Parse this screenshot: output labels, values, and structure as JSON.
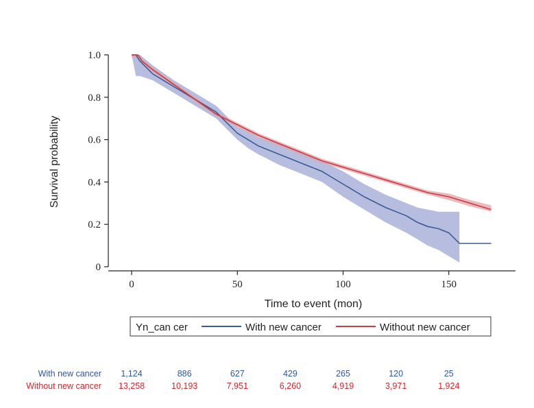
{
  "chart_data": {
    "type": "line",
    "title": "",
    "xlabel": "Time to event (mon)",
    "ylabel": "Survival probability",
    "xlim": [
      -10,
      180
    ],
    "ylim": [
      0,
      1.0
    ],
    "xticks": [
      0,
      50,
      100,
      150
    ],
    "xtick_labels": [
      "0",
      "50",
      "100",
      "150"
    ],
    "yticks": [
      0,
      0.2,
      0.4,
      0.6,
      0.8,
      1.0
    ],
    "ytick_labels": [
      "0",
      "0.2",
      "0.4",
      "0.6",
      "0.8",
      "1.0"
    ],
    "grid": false,
    "legend": {
      "title": "Yn_can cer",
      "placement": "bottom-center",
      "entries": [
        "With new cancer",
        "Without new cancer"
      ]
    },
    "colors": {
      "with_line": "#3b5b96",
      "with_band": "#aab2d8",
      "without_line": "#cc3a44",
      "without_band": "#e3a1a6",
      "risk_with_text": "#2f56a6",
      "risk_without_text": "#d8242b",
      "axis": "#222222"
    },
    "series": [
      {
        "name": "With new cancer",
        "x": [
          0,
          2,
          4,
          10,
          20,
          30,
          40,
          45,
          50,
          55,
          60,
          70,
          80,
          90,
          100,
          110,
          120,
          130,
          135,
          140,
          145,
          150,
          155,
          170
        ],
        "y": [
          1.0,
          1.0,
          0.97,
          0.91,
          0.85,
          0.79,
          0.73,
          0.68,
          0.63,
          0.6,
          0.57,
          0.53,
          0.49,
          0.45,
          0.39,
          0.33,
          0.28,
          0.24,
          0.21,
          0.19,
          0.18,
          0.16,
          0.11,
          0.11
        ],
        "lower": [
          1.0,
          0.9,
          0.9,
          0.88,
          0.82,
          0.76,
          0.7,
          0.65,
          0.6,
          0.56,
          0.53,
          0.48,
          0.44,
          0.4,
          0.33,
          0.27,
          0.21,
          0.16,
          0.13,
          0.1,
          0.08,
          0.05,
          0.02,
          null
        ],
        "upper": [
          1.0,
          1.0,
          1.0,
          0.95,
          0.88,
          0.82,
          0.76,
          0.71,
          0.66,
          0.64,
          0.61,
          0.58,
          0.54,
          0.5,
          0.45,
          0.39,
          0.34,
          0.3,
          0.28,
          0.27,
          0.26,
          0.26,
          0.26,
          null
        ]
      },
      {
        "name": "Without new cancer",
        "x": [
          0,
          3,
          5,
          10,
          20,
          30,
          40,
          50,
          60,
          70,
          80,
          90,
          100,
          110,
          120,
          130,
          140,
          150,
          160,
          170
        ],
        "y": [
          1.0,
          1.0,
          0.97,
          0.93,
          0.86,
          0.79,
          0.72,
          0.67,
          0.62,
          0.58,
          0.54,
          0.5,
          0.47,
          0.44,
          0.41,
          0.38,
          0.35,
          0.33,
          0.3,
          0.27
        ],
        "lower": [
          0.99,
          0.99,
          0.96,
          0.92,
          0.85,
          0.78,
          0.71,
          0.66,
          0.61,
          0.57,
          0.53,
          0.49,
          0.46,
          0.43,
          0.4,
          0.37,
          0.34,
          0.315,
          0.285,
          0.26
        ],
        "upper": [
          1.0,
          1.0,
          0.98,
          0.94,
          0.87,
          0.8,
          0.73,
          0.68,
          0.63,
          0.59,
          0.55,
          0.51,
          0.48,
          0.45,
          0.42,
          0.39,
          0.36,
          0.345,
          0.315,
          0.29
        ]
      }
    ],
    "risk_table": {
      "times": [
        0,
        25,
        50,
        75,
        100,
        125,
        150
      ],
      "rows": [
        {
          "label": "With new cancer",
          "values": [
            "1,124",
            "886",
            "627",
            "429",
            "265",
            "120",
            "25"
          ]
        },
        {
          "label": "Without new cancer",
          "values": [
            "13,258",
            "10,193",
            "7,951",
            "6,260",
            "4,919",
            "3,971",
            "1,924"
          ]
        }
      ]
    }
  }
}
